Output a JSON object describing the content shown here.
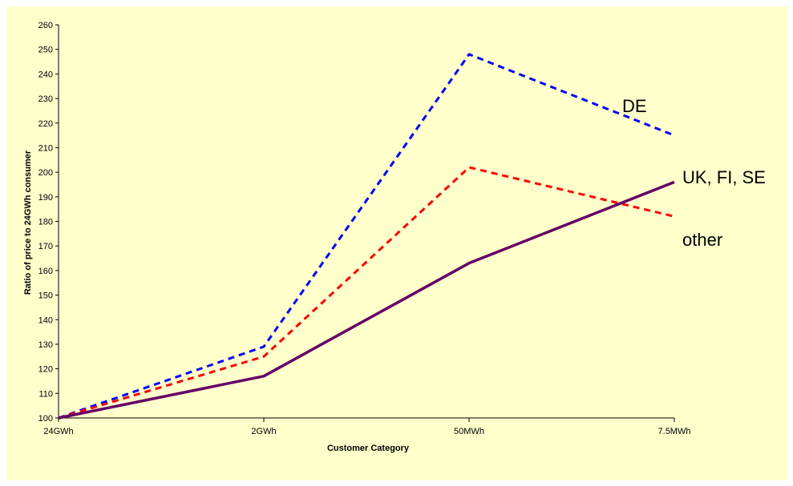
{
  "chart_data": {
    "type": "line",
    "title": "",
    "xlabel": "Customer Category",
    "ylabel": "Ratio of price to 24GWh consumer",
    "categories": [
      "24GWh",
      "2GWh",
      "50MWh",
      "7.5MWh"
    ],
    "ylim": [
      100,
      260
    ],
    "yticks": [
      100,
      110,
      120,
      130,
      140,
      150,
      160,
      170,
      180,
      190,
      200,
      210,
      220,
      230,
      240,
      250,
      260
    ],
    "grid": false,
    "background": "#ffffcc",
    "series": [
      {
        "name": "DE",
        "values": [
          100,
          129,
          248,
          215
        ],
        "color": "#0000ff",
        "style": "dashed"
      },
      {
        "name": "other",
        "values": [
          100,
          125,
          202,
          182
        ],
        "color": "#ff0000",
        "style": "dashed"
      },
      {
        "name": "UK, FI, SE",
        "values": [
          100,
          117,
          163,
          196
        ],
        "color": "#660066",
        "style": "solid"
      }
    ]
  }
}
